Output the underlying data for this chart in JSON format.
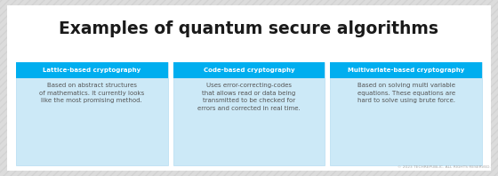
{
  "title": "Examples of quantum secure algorithms",
  "title_fontsize": 13.5,
  "title_color": "#1a1a1a",
  "background_color": "#dcdcdc",
  "stripe_color": "#cccccc",
  "white_area_color": "#ffffff",
  "card_bg_color": "#cce9f7",
  "header_bg_color": "#00aeef",
  "header_text_color": "#ffffff",
  "body_text_color": "#555555",
  "footer_text": "© 2023 TECHREPUBLIC. ALL RIGHTS RESERVED.",
  "footer_color": "#aaaaaa",
  "footer_fontsize": 3.2,
  "cards": [
    {
      "header": "Lattice-based cryptography",
      "body": "Based on abstract structures\nof mathematics. It currently looks\nlike the most promising method."
    },
    {
      "header": "Code-based cryptography",
      "body": "Uses error-correcting-codes\nthat allows read or data being\ntransmitted to be checked for\nerrors and corrected in real time."
    },
    {
      "header": "Multivariate-based cryptography",
      "body": "Based on solving multi variable\nequations. These equations are\nhard to solve using brute force."
    }
  ]
}
